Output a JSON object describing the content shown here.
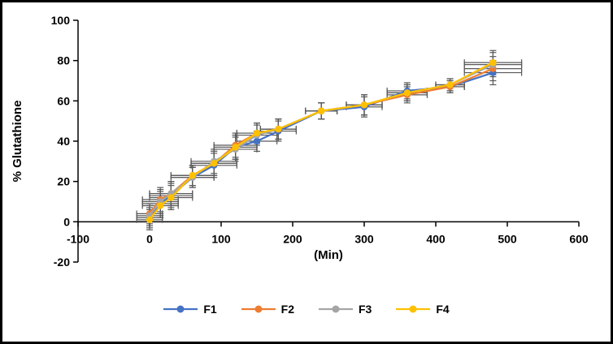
{
  "chart_data": {
    "type": "line",
    "title": "",
    "xlabel": "(Min)",
    "ylabel": "% Glutathione",
    "xlim": [
      -100,
      600
    ],
    "ylim": [
      -20,
      100
    ],
    "x_ticks": [
      -100,
      0,
      100,
      200,
      300,
      400,
      500,
      600
    ],
    "y_ticks": [
      -20,
      0,
      20,
      40,
      60,
      80,
      100
    ],
    "grid": false,
    "legend_position": "bottom",
    "axis_color": "#000000",
    "error_bar_color": "#595959",
    "x": [
      0,
      15,
      30,
      60,
      90,
      120,
      150,
      180,
      240,
      300,
      360,
      420,
      480
    ],
    "x_err": [
      18,
      25,
      30,
      30,
      32,
      30,
      28,
      25,
      22,
      25,
      28,
      20,
      40
    ],
    "y_err": [
      5,
      6,
      6,
      5,
      6,
      6,
      5,
      5,
      4,
      5,
      4,
      3,
      6
    ],
    "series": [
      {
        "name": "F1",
        "color": "#4472C4",
        "values": [
          2,
          9,
          13,
          22,
          28,
          37,
          40,
          45,
          55,
          57,
          65,
          67,
          74
        ]
      },
      {
        "name": "F2",
        "color": "#ED7D31",
        "values": [
          4,
          11,
          14,
          23,
          29,
          38,
          44,
          46,
          55,
          58,
          63,
          67,
          76
        ]
      },
      {
        "name": "F3",
        "color": "#A5A5A5",
        "values": [
          3,
          10,
          14,
          22,
          30,
          36,
          43,
          46,
          55,
          58,
          64,
          68,
          78
        ]
      },
      {
        "name": "F4",
        "color": "#FFC000",
        "values": [
          1,
          8,
          12,
          23,
          29,
          37,
          44,
          46,
          55,
          58,
          64,
          68,
          79
        ]
      }
    ]
  }
}
